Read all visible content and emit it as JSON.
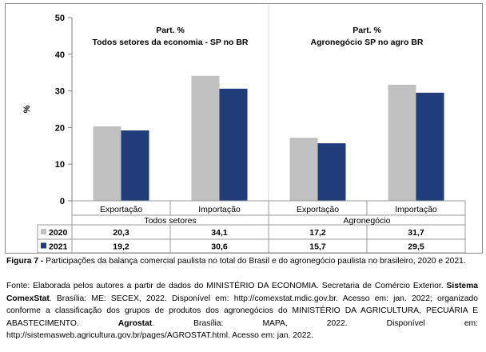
{
  "chart_data": {
    "type": "bar",
    "ylabel": "%",
    "ylim": [
      0,
      50
    ],
    "yticks": [
      0,
      10,
      20,
      30,
      40,
      50
    ],
    "grid": false,
    "groups": [
      {
        "label": "Todos setores",
        "title_line1": "Part. %",
        "title_line2": "Todos setores da economia - SP no BR"
      },
      {
        "label": "Agronegócio",
        "title_line1": "Part. %",
        "title_line2": "Agronegócio SP no agro BR"
      }
    ],
    "categories": [
      "Exportação",
      "Importação",
      "Exportação",
      "Importação"
    ],
    "series": [
      {
        "name": "2020",
        "color": "#c0c0c0",
        "values": [
          20.3,
          34.1,
          17.2,
          31.7
        ],
        "labels": [
          "20,3",
          "34,1",
          "17,2",
          "31,7"
        ]
      },
      {
        "name": "2021",
        "color": "#1f3d7a",
        "values": [
          19.2,
          30.6,
          15.7,
          29.5
        ],
        "labels": [
          "19,2",
          "30,6",
          "15,7",
          "29,5"
        ]
      }
    ]
  },
  "caption": {
    "fig_label": "Figura 7 - ",
    "fig_text": "Participações da balança comercial paulista no total do Brasil e do agronegócio paulista no brasileiro, 2020 e 2021.",
    "source_1": "Fonte: Elaborada pelos autores a partir de dados do MINISTÉRIO DA ECONOMIA. Secretaria de Comércio Exterior. ",
    "source_bold_1": "Sistema ComexStat",
    "source_2": ". Brasília: ME: SECEX, 2022. Disponível em: http://comexstat.mdic.gov.br. Acesso em: jan. 2022; organizado conforme a classificação dos grupos de produtos dos agronegócios do MINISTÉRIO DA AGRICULTURA, PECUÁRIA E ABASTECIMENTO. ",
    "source_bold_2": "Agrostat",
    "source_3": ". Brasília: MAPA, 2022. Disponível em: http://sistemasweb.agricultura.gov.br/pages/AGROSTAT.html. Acesso em: jan. 2022."
  }
}
